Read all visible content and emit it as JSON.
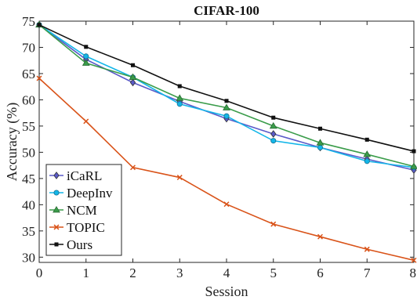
{
  "chart_data": {
    "type": "line",
    "title": "CIFAR-100",
    "xlabel": "Session",
    "ylabel": "Accuracy (%)",
    "x": [
      0,
      1,
      2,
      3,
      4,
      5,
      6,
      7,
      8
    ],
    "xlim": [
      0,
      8
    ],
    "ylim": [
      29,
      75
    ],
    "yticks": [
      30,
      35,
      40,
      45,
      50,
      55,
      60,
      65,
      70,
      75
    ],
    "grid": false,
    "legend_position": "bottom-left",
    "series": [
      {
        "name": "iCaRL",
        "color": "#5a5ac8",
        "marker": "diamond",
        "values": [
          74.3,
          67.7,
          63.3,
          59.7,
          56.4,
          53.5,
          50.9,
          48.7,
          46.6
        ]
      },
      {
        "name": "DeepInv",
        "color": "#13b6e8",
        "marker": "circle",
        "values": [
          74.3,
          68.3,
          64.3,
          59.2,
          56.9,
          52.2,
          50.9,
          48.3,
          47.1
        ]
      },
      {
        "name": "NCM",
        "color": "#3a9c4a",
        "marker": "triangle",
        "values": [
          74.3,
          67.0,
          64.3,
          60.3,
          58.5,
          55.0,
          51.8,
          49.6,
          47.3
        ]
      },
      {
        "name": "TOPIC",
        "color": "#d95319",
        "marker": "x",
        "values": [
          64.1,
          55.9,
          47.1,
          45.2,
          40.1,
          36.3,
          33.9,
          31.5,
          29.4
        ]
      },
      {
        "name": "Ours",
        "color": "#111111",
        "marker": "square",
        "values": [
          74.3,
          70.1,
          66.6,
          62.6,
          59.8,
          56.6,
          54.5,
          52.4,
          50.2
        ]
      }
    ]
  }
}
